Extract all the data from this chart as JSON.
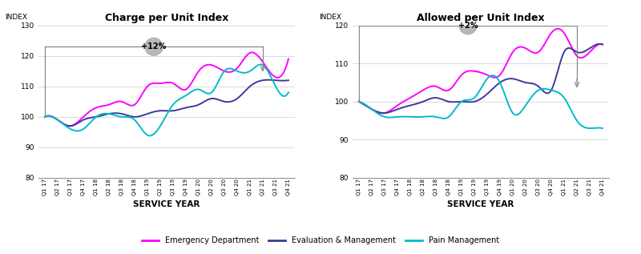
{
  "x_labels": [
    "Q1 17",
    "Q2 17",
    "Q3 17",
    "Q4 17",
    "Q1 18",
    "Q2 18",
    "Q3 18",
    "Q4 18",
    "Q1 19",
    "Q2 19",
    "Q3 19",
    "Q4 19",
    "Q1 20",
    "Q2 20",
    "Q3 20",
    "Q4 20",
    "Q1 21",
    "Q2 21",
    "Q3 21",
    "Q4 21"
  ],
  "chart1_title": "Charge per Unit Index",
  "chart2_title": "Allowed per Unit Index",
  "xlabel": "SERVICE YEAR",
  "ylabel": "INDEX",
  "ylim1": [
    80,
    130
  ],
  "ylim2": [
    80,
    120
  ],
  "yticks1": [
    80,
    90,
    100,
    110,
    120,
    130
  ],
  "yticks2": [
    80,
    90,
    100,
    110,
    120
  ],
  "annotation1": "+12%",
  "annotation2": "+2%",
  "colors": {
    "emergency": "#FF00FF",
    "evaluation": "#3B3B9B",
    "pain": "#00BBCC"
  },
  "chart1_emergency": [
    100,
    99,
    97,
    100,
    103,
    104,
    105,
    104,
    110,
    111,
    111,
    109,
    115,
    117,
    115,
    116,
    121,
    118,
    113,
    119
  ],
  "chart1_evaluation": [
    100,
    99,
    97,
    99,
    100,
    101,
    101,
    100,
    101,
    102,
    102,
    103,
    104,
    106,
    105,
    106,
    110,
    112,
    112,
    112
  ],
  "chart1_pain": [
    100,
    99,
    96,
    96,
    100,
    101,
    100,
    99,
    94,
    97,
    104,
    107,
    109,
    108,
    115,
    115,
    115,
    117,
    110,
    108
  ],
  "chart2_emergency": [
    100,
    98,
    97,
    99,
    101,
    103,
    104,
    103,
    107,
    108,
    107,
    107,
    113,
    114,
    113,
    118,
    118,
    112,
    113,
    115
  ],
  "chart2_evaluation": [
    100,
    98,
    97,
    98,
    99,
    100,
    101,
    100,
    100,
    100,
    102,
    105,
    106,
    105,
    104,
    103,
    113,
    113,
    114,
    115
  ],
  "chart2_pain": [
    100,
    98,
    96,
    96,
    96,
    96,
    96,
    96,
    100,
    101,
    106,
    105,
    97,
    99,
    103,
    103,
    101,
    95,
    93,
    93
  ]
}
